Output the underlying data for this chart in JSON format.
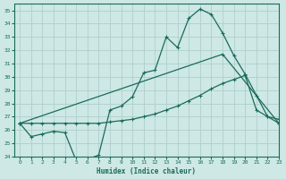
{
  "xlabel": "Humidex (Indice chaleur)",
  "ylabel": "",
  "bg_color": "#cde8e5",
  "grid_color": "#aed0cc",
  "line_color": "#1a6b5a",
  "xlim": [
    -0.5,
    23
  ],
  "ylim": [
    24,
    35.5
  ],
  "yticks": [
    24,
    25,
    26,
    27,
    28,
    29,
    30,
    31,
    32,
    33,
    34,
    35
  ],
  "xticks": [
    0,
    1,
    2,
    3,
    4,
    5,
    6,
    7,
    8,
    9,
    10,
    11,
    12,
    13,
    14,
    15,
    16,
    17,
    18,
    19,
    20,
    21,
    22,
    23
  ],
  "line1_x": [
    0,
    1,
    2,
    3,
    4,
    5,
    6,
    7,
    8,
    9,
    10,
    11,
    12,
    13,
    14,
    15,
    16,
    17,
    18,
    19,
    20,
    21,
    22,
    23
  ],
  "line1_y": [
    26.5,
    25.5,
    25.7,
    25.9,
    25.8,
    23.7,
    23.8,
    24.1,
    27.5,
    27.8,
    28.5,
    30.3,
    30.5,
    33.0,
    32.2,
    34.4,
    35.1,
    34.7,
    33.3,
    31.6,
    30.2,
    28.6,
    27.0,
    26.5
  ],
  "line2_x": [
    0,
    18,
    23
  ],
  "line2_y": [
    26.5,
    31.7,
    26.5
  ],
  "line3_x": [
    0,
    1,
    2,
    3,
    4,
    5,
    6,
    7,
    8,
    9,
    10,
    11,
    12,
    13,
    14,
    15,
    16,
    17,
    18,
    19,
    20,
    21,
    22,
    23
  ],
  "line3_y": [
    26.5,
    26.5,
    26.5,
    26.5,
    26.5,
    26.5,
    26.5,
    26.5,
    26.6,
    26.7,
    26.8,
    27.0,
    27.2,
    27.5,
    27.8,
    28.2,
    28.6,
    29.1,
    29.5,
    29.8,
    30.1,
    27.5,
    27.0,
    26.8
  ]
}
